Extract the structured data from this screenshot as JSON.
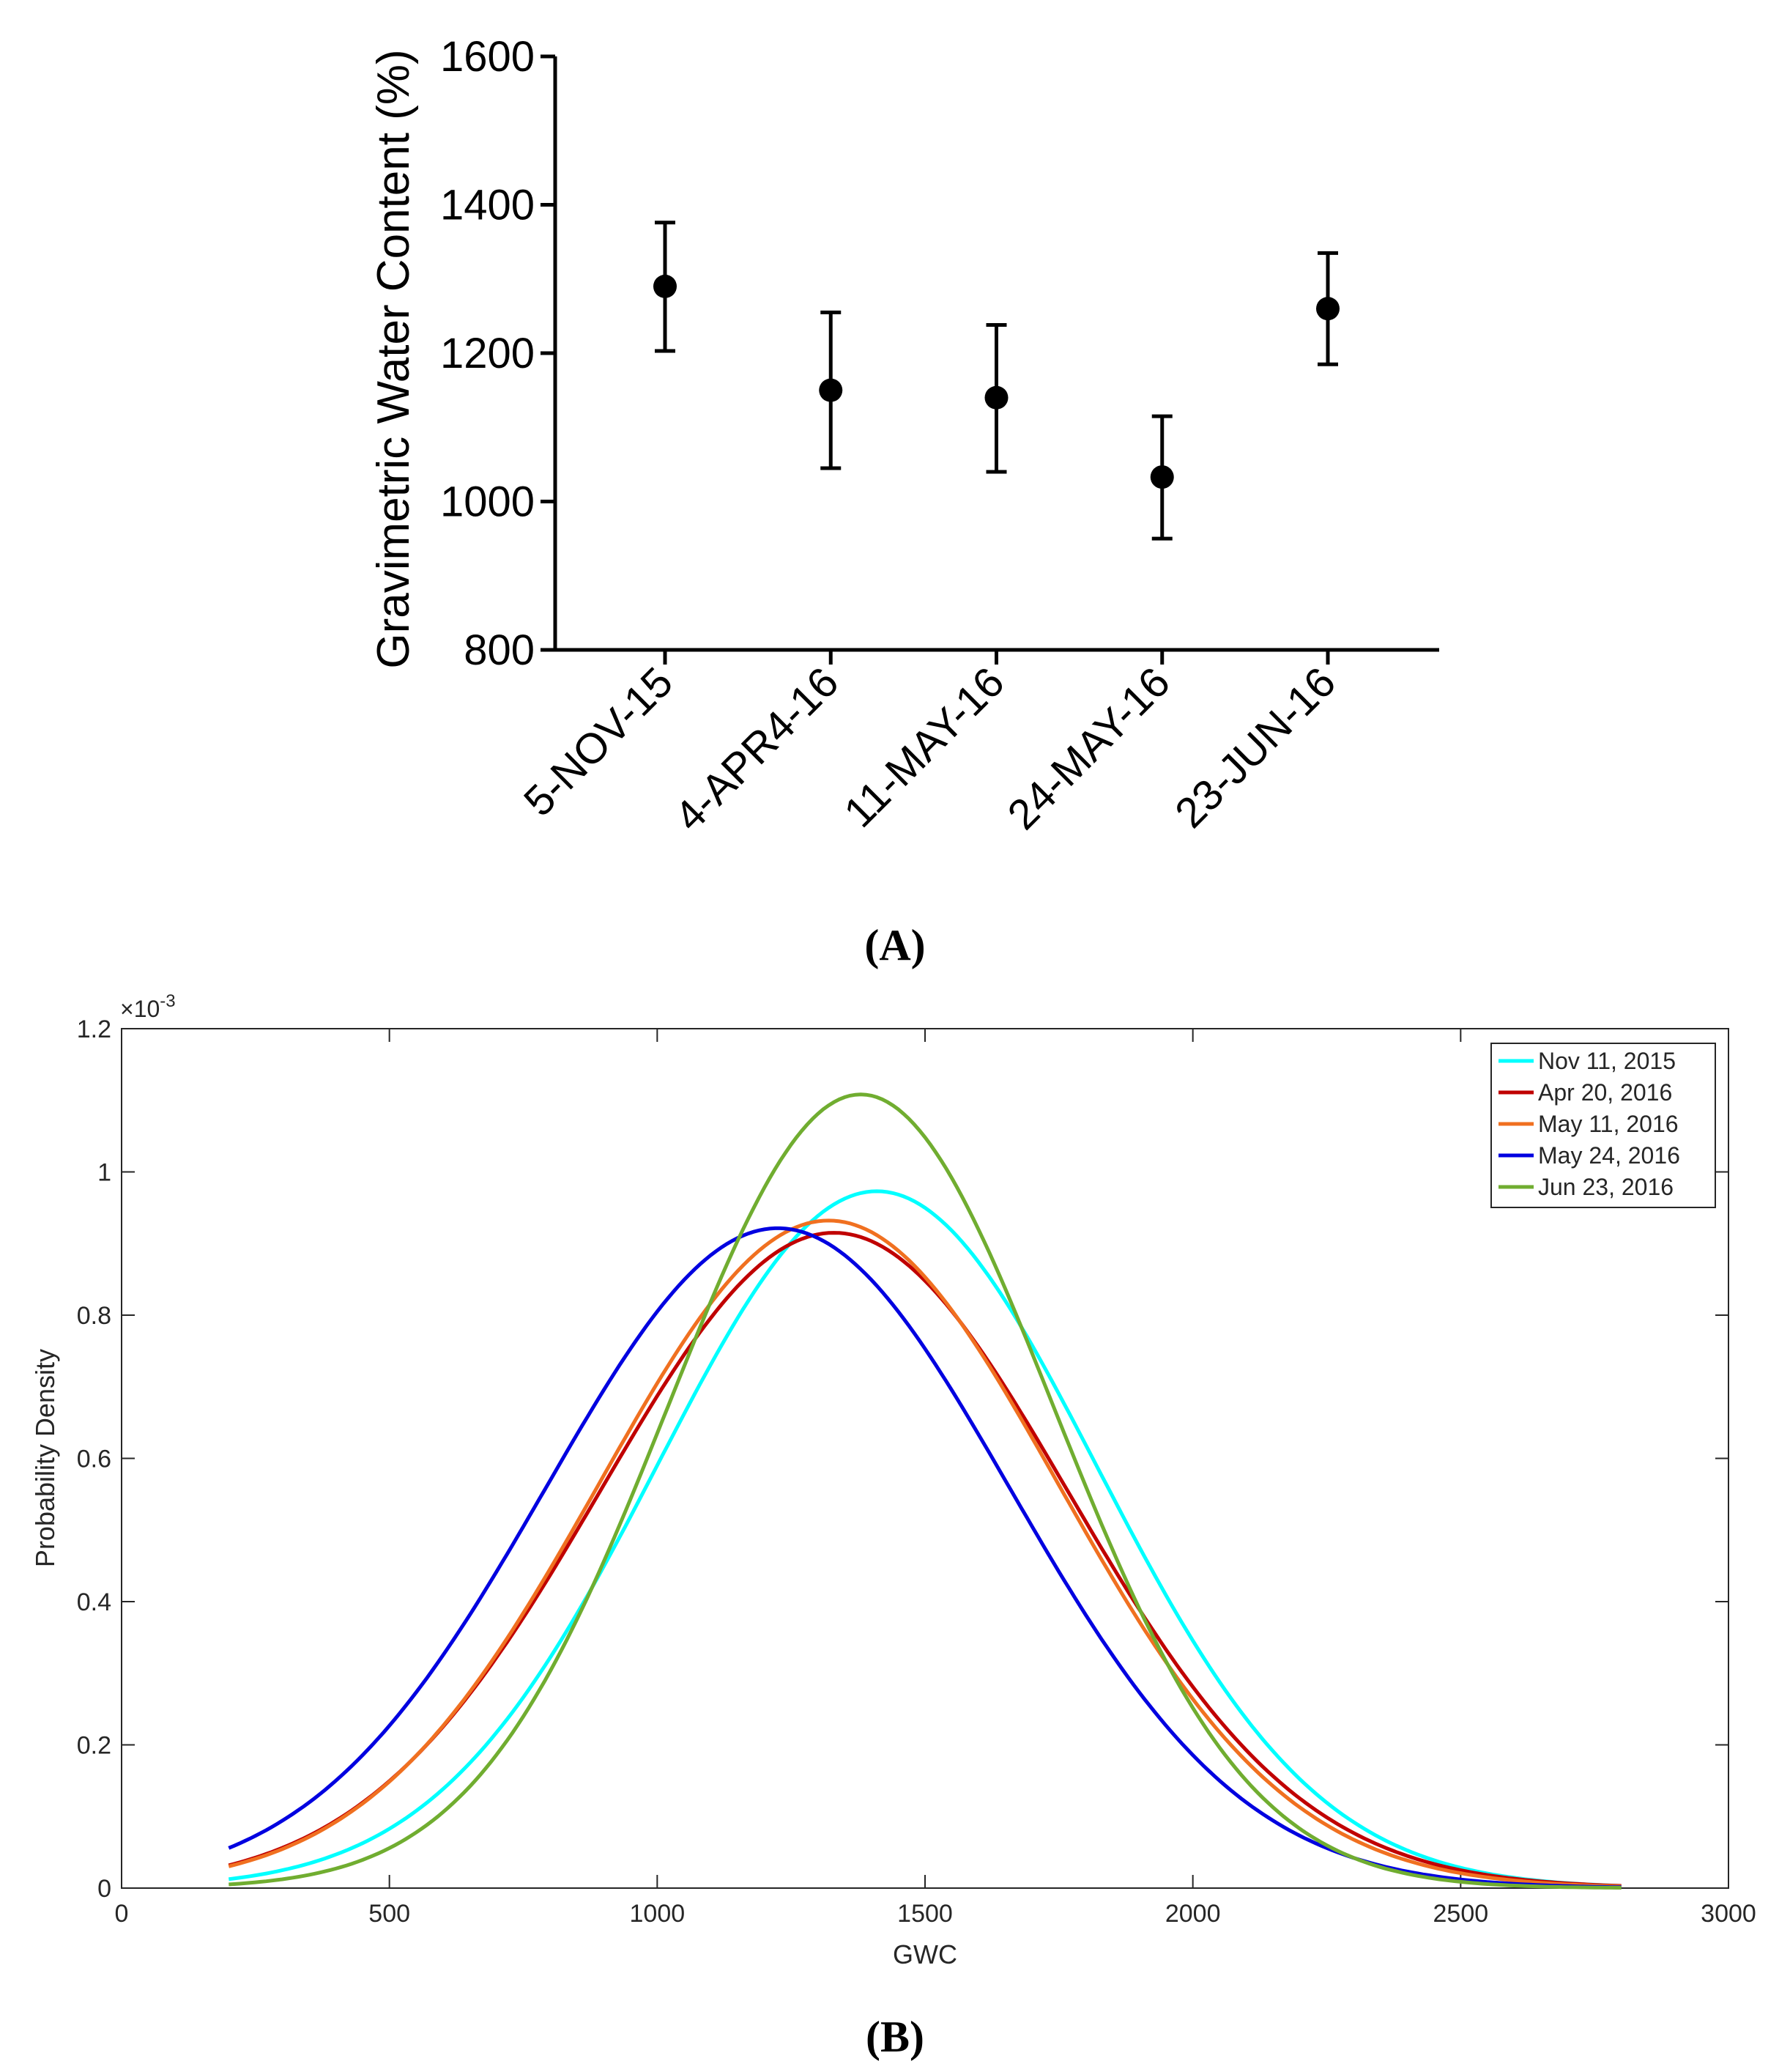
{
  "chart_data": [
    {
      "type": "scatter",
      "panel_label": "A",
      "title": "",
      "xlabel": "",
      "ylabel": "Gravimetric Water Content (%)",
      "categories": [
        "5-NOV-15",
        "4-APR4-16",
        "11-MAY-16",
        "24-MAY-16",
        "23-JUN-16"
      ],
      "values": [
        1290,
        1150,
        1140,
        1033,
        1260
      ],
      "error_low": [
        1203,
        1045,
        1040,
        950,
        1185
      ],
      "error_high": [
        1376,
        1255,
        1238,
        1115,
        1335
      ],
      "ylim": [
        800,
        1600
      ],
      "yticks": [
        800,
        1000,
        1200,
        1400,
        1600
      ],
      "grid": false,
      "colors": {
        "marker": "#000000",
        "axis": "#000000"
      }
    },
    {
      "type": "line",
      "panel_label": "B",
      "title": "",
      "xlabel": "GWC",
      "ylabel": "Probability Density",
      "y_exponent_label": "×10",
      "y_exponent_power": "-3",
      "xlim": [
        0,
        3000
      ],
      "ylim": [
        0,
        1.2
      ],
      "xticks": [
        0,
        500,
        1000,
        1500,
        2000,
        2500,
        3000
      ],
      "yticks": [
        0,
        0.2,
        0.4,
        0.6,
        0.8,
        1,
        1.2
      ],
      "x_range": [
        200,
        2800
      ],
      "grid": false,
      "legend_position": "top-right",
      "series": [
        {
          "name": "Nov 11, 2015",
          "color": "#00ffff",
          "mean": 1410,
          "std": 410
        },
        {
          "name": "Apr 20, 2016",
          "color": "#c00000",
          "mean": 1330,
          "std": 436
        },
        {
          "name": "May 11, 2016",
          "color": "#f07020",
          "mean": 1320,
          "std": 428
        },
        {
          "name": "May 24, 2016",
          "color": "#0000e0",
          "mean": 1225,
          "std": 433
        },
        {
          "name": "Jun 23, 2016",
          "color": "#70ad30",
          "mean": 1380,
          "std": 360
        }
      ]
    }
  ]
}
